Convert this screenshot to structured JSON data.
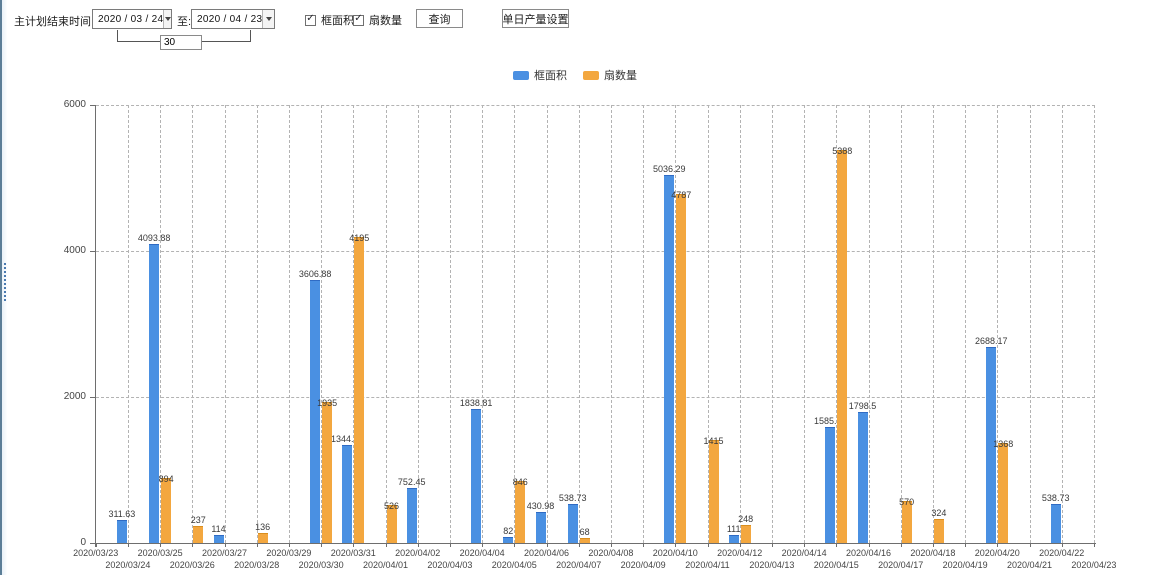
{
  "toolbar": {
    "plan_end_label": "主计划结束时间:",
    "date_from": "2020 / 03 / 24",
    "to_label": "至:",
    "date_to": "2020 / 04 / 23",
    "interval_days": "30",
    "checkbox_frame_area_label": "框面积",
    "checkbox_sash_count_label": "扇数量",
    "query_button_label": "查询",
    "daily_output_button_label": "单日产量设置"
  },
  "legend": {
    "items": [
      {
        "label": "框面积",
        "color": "#4a90e2"
      },
      {
        "label": "扇数量",
        "color": "#f3a73f"
      }
    ]
  },
  "chart_data": {
    "type": "bar",
    "title": "",
    "xlabel": "",
    "ylabel": "",
    "ylim": [
      0,
      6000
    ],
    "yticks": [
      0,
      2000,
      4000,
      6000
    ],
    "grid": true,
    "legend_position": "top",
    "categories": [
      "2020/03/23",
      "2020/03/24",
      "2020/03/25",
      "2020/03/26",
      "2020/03/27",
      "2020/03/28",
      "2020/03/29",
      "2020/03/30",
      "2020/03/31",
      "2020/04/01",
      "2020/04/02",
      "2020/04/03",
      "2020/04/04",
      "2020/04/05",
      "2020/04/06",
      "2020/04/07",
      "2020/04/08",
      "2020/04/09",
      "2020/04/10",
      "2020/04/11",
      "2020/04/12",
      "2020/04/13",
      "2020/04/14",
      "2020/04/15",
      "2020/04/16",
      "2020/04/17",
      "2020/04/18",
      "2020/04/19",
      "2020/04/20",
      "2020/04/21",
      "2020/04/22",
      "2020/04/23"
    ],
    "series": [
      {
        "name": "框面积",
        "color": "#4a90e2",
        "border_color": "#2f6bc4",
        "values": [
          null,
          311.63,
          4093.88,
          null,
          114,
          null,
          null,
          3606.88,
          1344.95,
          null,
          752.45,
          null,
          1838.81,
          82,
          430.98,
          538.73,
          null,
          null,
          5036.29,
          null,
          111,
          null,
          null,
          1585.96,
          1798.5,
          null,
          null,
          null,
          2688.17,
          null,
          538.73,
          null
        ]
      },
      {
        "name": "扇数量",
        "color": "#f3a73f",
        "border_color": "#d98e1f",
        "values": [
          null,
          null,
          894,
          237,
          null,
          136,
          null,
          1935,
          4195,
          526,
          null,
          null,
          null,
          846,
          null,
          68,
          null,
          null,
          4787,
          1415,
          248,
          null,
          null,
          5388,
          null,
          570,
          324,
          null,
          1368,
          null,
          null,
          null
        ]
      }
    ]
  }
}
